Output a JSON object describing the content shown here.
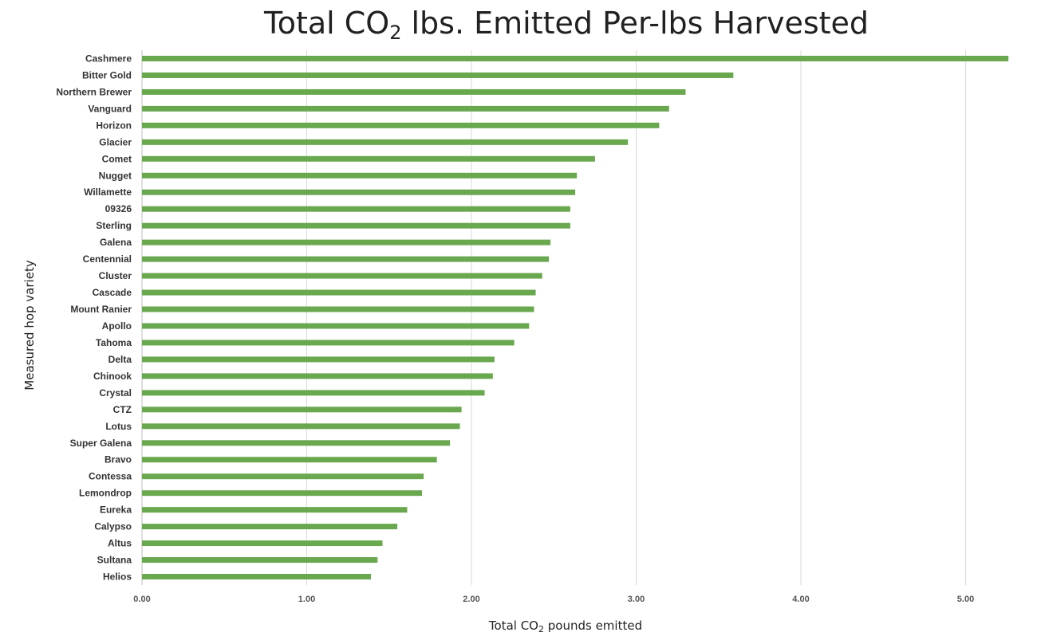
{
  "chart_data": {
    "type": "bar",
    "orientation": "horizontal",
    "title_main": "Total CO",
    "title_sub": "2",
    "title_rest": "lbs. Emitted Per-lbs Harvested",
    "xlabel_main": "Total CO",
    "xlabel_sub": "2",
    "xlabel_rest": " pounds emitted",
    "ylabel": "Measured hop variety",
    "xlim": [
      0,
      5.3
    ],
    "x_ticks": [
      "0.00",
      "1.00",
      "2.00",
      "3.00",
      "4.00",
      "5.00"
    ],
    "grid": true,
    "bar_color": "#6aa84f",
    "categories": [
      "Cashmere",
      "Bitter Gold",
      "Northern Brewer",
      "Vanguard",
      "Horizon",
      "Glacier",
      "Comet",
      "Nugget",
      "Willamette",
      "09326",
      "Sterling",
      "Galena",
      "Centennial",
      "Cluster",
      "Cascade",
      "Mount Ranier",
      "Apollo",
      "Tahoma",
      "Delta",
      "Chinook",
      "Crystal",
      "CTZ",
      "Lotus",
      "Super Galena",
      "Bravo",
      "Contessa",
      "Lemondrop",
      "Eureka",
      "Calypso",
      "Altus",
      "Sultana",
      "Helios"
    ],
    "values": [
      5.26,
      3.59,
      3.3,
      3.2,
      3.14,
      2.95,
      2.75,
      2.64,
      2.63,
      2.6,
      2.6,
      2.48,
      2.47,
      2.43,
      2.39,
      2.38,
      2.35,
      2.26,
      2.14,
      2.13,
      2.08,
      1.94,
      1.93,
      1.87,
      1.79,
      1.71,
      1.7,
      1.61,
      1.55,
      1.46,
      1.43,
      1.39
    ]
  }
}
